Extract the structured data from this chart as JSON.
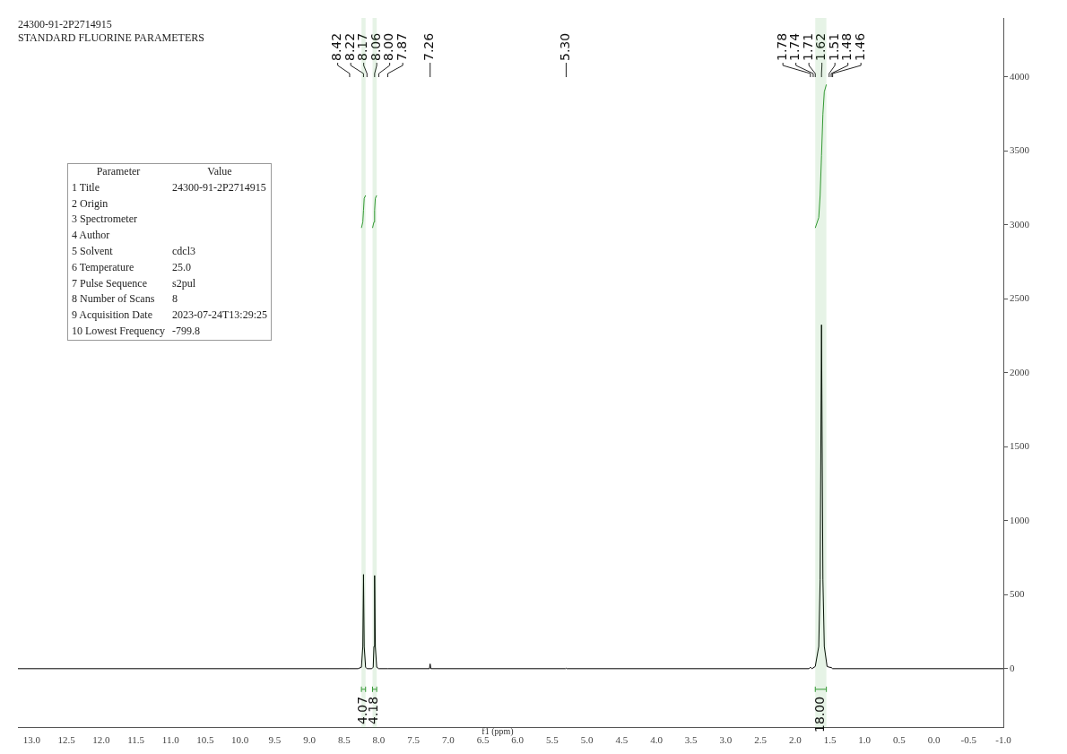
{
  "chart_data": {
    "type": "line",
    "title": "24300-91-2P2714915",
    "subtitle": "STANDARD FLUORINE PARAMETERS",
    "xlabel": "f1 (ppm)",
    "xlim": [
      13.2,
      -1.0
    ],
    "xticks": [
      {
        "value": 13,
        "label": "13.0"
      },
      12.5,
      {
        "value": 12,
        "label": "12.0"
      },
      11.5,
      {
        "value": 11,
        "label": "11.0"
      },
      10.5,
      {
        "value": 10,
        "label": "10.0"
      },
      9.5,
      {
        "value": 9,
        "label": "9.0"
      },
      8.5,
      {
        "value": 8,
        "label": "8.0"
      },
      7.5,
      {
        "value": 7,
        "label": "7.0"
      },
      6.5,
      {
        "value": 6,
        "label": "6.0"
      },
      5.5,
      {
        "value": 5,
        "label": "5.0"
      },
      4.5,
      {
        "value": 4,
        "label": "4.0"
      },
      3.5,
      {
        "value": 3,
        "label": "3.0"
      },
      2.5,
      {
        "value": 2,
        "label": "2.0"
      },
      1.5,
      {
        "value": 1,
        "label": "1.0"
      },
      0.5,
      {
        "value": 0,
        "label": "0.0"
      },
      -0.5,
      {
        "value": -1,
        "label": "-1.0"
      }
    ],
    "ylim": [
      -400,
      4400
    ],
    "yticks": [
      0,
      500,
      1000,
      1500,
      2000,
      2500,
      3000,
      3500,
      4000
    ],
    "grid": false,
    "legend": false,
    "marker": "none",
    "line_style": "solid",
    "series": [
      {
        "color": "#000000",
        "x": [
          13.2,
          8.42,
          8.3,
          8.25,
          8.23,
          8.22,
          8.21,
          8.19,
          8.17,
          8.1,
          8.08,
          8.07,
          8.06,
          8.05,
          8.03,
          8.0,
          7.87,
          7.27,
          7.26,
          7.25,
          5.31,
          5.3,
          5.29,
          1.8,
          1.78,
          1.76,
          1.74,
          1.71,
          1.66,
          1.64,
          1.62,
          1.6,
          1.58,
          1.54,
          1.51,
          1.48,
          1.46,
          -1.0
        ],
        "values": [
          0,
          0,
          0,
          10,
          150,
          637,
          150,
          10,
          0,
          0,
          10,
          150,
          630,
          150,
          10,
          0,
          0,
          0,
          32,
          0,
          0,
          3,
          0,
          0,
          10,
          0,
          5,
          15,
          150,
          600,
          2325,
          600,
          150,
          15,
          10,
          8,
          0,
          0
        ]
      },
      {
        "color": "#339933",
        "x": [
          8.25,
          8.23,
          8.22,
          8.21,
          8.19
        ],
        "values": [
          2980,
          3020,
          3100,
          3180,
          3200
        ]
      },
      {
        "color": "#339933",
        "x": [
          8.09,
          8.07,
          8.06,
          8.05,
          8.03
        ],
        "values": [
          2980,
          3020,
          3100,
          3180,
          3200
        ]
      },
      {
        "color": "#339933",
        "x": [
          1.71,
          1.66,
          1.64,
          1.62,
          1.6,
          1.58,
          1.55
        ],
        "values": [
          2980,
          3050,
          3200,
          3470,
          3750,
          3900,
          3950
        ]
      }
    ],
    "bands": [
      {
        "axis": "x",
        "from": 8.25,
        "to": 8.19,
        "label": "4.07",
        "color": "#339933"
      },
      {
        "axis": "x",
        "from": 8.09,
        "to": 8.03,
        "label": "4.18",
        "color": "#339933"
      },
      {
        "axis": "x",
        "from": 1.71,
        "to": 1.55,
        "label": "18.00",
        "color": "#339933"
      }
    ],
    "annotations": [
      "Parameter\tValue",
      "1 Title\t24300-91-2P2714915",
      "2 Origin\t",
      "3 Spectrometer\t",
      "4 Author\t",
      "5 Solvent\tcdcl3",
      "6 Temperature\t25.0",
      "7 Pulse Sequence\ts2pul",
      "8 Number of Scans\t8",
      "9 Acquisition Date\t2023-07-24T13:29:25",
      "10 Lowest Frequency\t-799.8",
      {
        "text": "8.42",
        "x": 8.42
      },
      {
        "text": "8.22",
        "x": 8.22
      },
      {
        "text": "8.17",
        "x": 8.17
      },
      {
        "text": "8.06",
        "x": 8.06
      },
      {
        "text": "8.00",
        "x": 8.0
      },
      {
        "text": "7.87",
        "x": 7.87
      },
      {
        "text": "7.26",
        "x": 7.26
      },
      {
        "text": "5.30",
        "x": 5.3
      },
      {
        "text": "1.78",
        "x": 1.78
      },
      {
        "text": "1.74",
        "x": 1.74
      },
      {
        "text": "1.71",
        "x": 1.71
      },
      {
        "text": "1.62",
        "x": 1.62
      },
      {
        "text": "1.51",
        "x": 1.51
      },
      {
        "text": "1.48",
        "x": 1.48
      },
      {
        "text": "1.46",
        "x": 1.46
      }
    ]
  }
}
